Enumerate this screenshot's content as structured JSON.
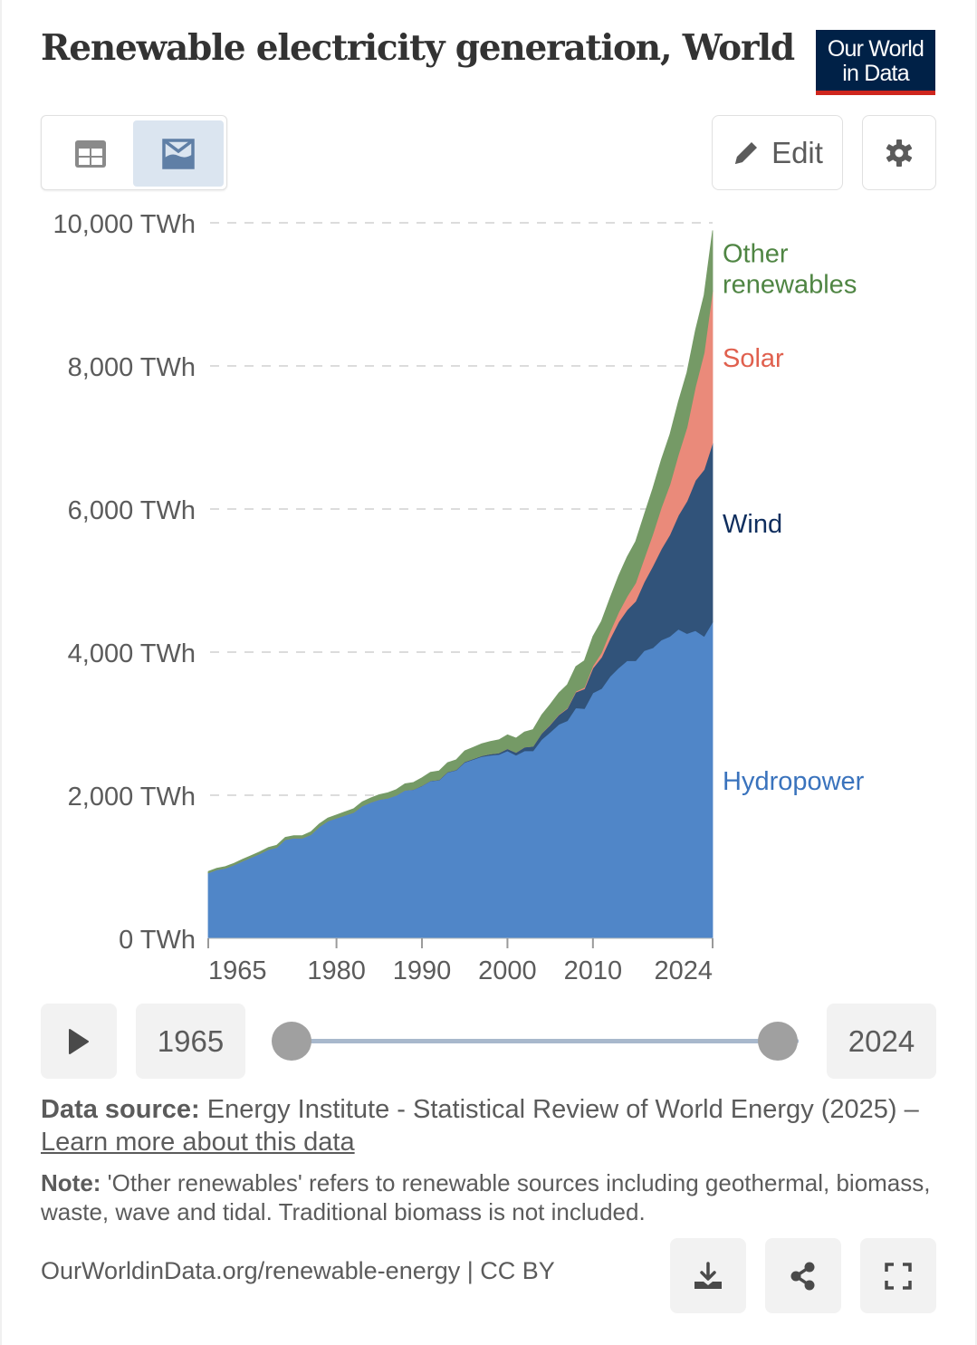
{
  "header": {
    "title": "Renewable electricity generation, World",
    "logo_line1": "Our World",
    "logo_line2": "in Data"
  },
  "toolbar": {
    "table_view_icon": "table-icon",
    "chart_view_icon": "area-chart-icon",
    "chart_view_active": true,
    "edit_label": "Edit",
    "settings_icon": "gear-icon"
  },
  "colors": {
    "hydropower": "#5086c8",
    "wind": "#31537a",
    "solar": "#ea8a7a",
    "other": "#759a66",
    "hydropower_label": "#3a73bd",
    "wind_label": "#0f2e5e",
    "solar_label": "#e0604e",
    "other_label": "#4f8543",
    "logo_bg": "#002147",
    "logo_accent": "#ce261e"
  },
  "chart_data": {
    "type": "area",
    "stacked": true,
    "title": "Renewable electricity generation, World",
    "xlabel": "",
    "ylabel": "",
    "unit": "TWh",
    "x_range": [
      1965,
      2024
    ],
    "ylim": [
      0,
      10000
    ],
    "grid": "horizontal-dashed",
    "legend": "right-inline",
    "x_ticks": [
      "1965",
      "1980",
      "1990",
      "2000",
      "2010",
      "2024"
    ],
    "y_ticks": [
      "0 TWh",
      "2,000 TWh",
      "4,000 TWh",
      "6,000 TWh",
      "8,000 TWh",
      "10,000 TWh"
    ],
    "y_tick_values": [
      0,
      2000,
      4000,
      6000,
      8000,
      10000
    ],
    "x": [
      1965,
      1966,
      1967,
      1968,
      1969,
      1970,
      1971,
      1972,
      1973,
      1974,
      1975,
      1976,
      1977,
      1978,
      1979,
      1980,
      1981,
      1982,
      1983,
      1984,
      1985,
      1986,
      1987,
      1988,
      1989,
      1990,
      1991,
      1992,
      1993,
      1994,
      1995,
      1996,
      1997,
      1998,
      1999,
      2000,
      2001,
      2002,
      2003,
      2004,
      2005,
      2006,
      2007,
      2008,
      2009,
      2010,
      2011,
      2012,
      2013,
      2014,
      2015,
      2016,
      2017,
      2018,
      2019,
      2020,
      2021,
      2022,
      2023,
      2024
    ],
    "series": [
      {
        "name": "Hydropower",
        "values": [
          915,
          960,
          980,
          1025,
          1080,
          1130,
          1180,
          1240,
          1270,
          1380,
          1400,
          1400,
          1450,
          1560,
          1640,
          1680,
          1720,
          1760,
          1850,
          1900,
          1940,
          1960,
          2000,
          2070,
          2080,
          2130,
          2200,
          2210,
          2320,
          2350,
          2460,
          2500,
          2540,
          2560,
          2570,
          2620,
          2560,
          2620,
          2620,
          2780,
          2880,
          2990,
          3040,
          3220,
          3210,
          3430,
          3490,
          3660,
          3780,
          3880,
          3880,
          4020,
          4060,
          4170,
          4220,
          4320,
          4260,
          4300,
          4220,
          4420
        ]
      },
      {
        "name": "Wind",
        "values": [
          0,
          0,
          0,
          0,
          0,
          0,
          0,
          0,
          0,
          0,
          0,
          0,
          0,
          0,
          0,
          0,
          0,
          0,
          0,
          0,
          0,
          0,
          0,
          0,
          1,
          4,
          4,
          5,
          6,
          7,
          8,
          10,
          12,
          16,
          21,
          31,
          38,
          52,
          63,
          85,
          104,
          133,
          171,
          220,
          276,
          346,
          437,
          525,
          640,
          710,
          831,
          960,
          1140,
          1270,
          1420,
          1590,
          1850,
          2100,
          2330,
          2500
        ]
      },
      {
        "name": "Solar",
        "values": [
          0,
          0,
          0,
          0,
          0,
          0,
          0,
          0,
          0,
          0,
          0,
          0,
          0,
          0,
          0,
          0,
          0,
          0,
          0,
          0,
          0,
          0,
          0,
          0,
          0,
          0,
          0,
          0,
          0,
          0,
          0,
          0,
          0,
          0,
          0,
          1,
          1,
          1,
          1,
          2,
          4,
          6,
          8,
          12,
          21,
          33,
          66,
          100,
          136,
          190,
          256,
          330,
          445,
          580,
          700,
          850,
          1030,
          1310,
          1630,
          2130
        ]
      },
      {
        "name": "Other renewables",
        "values": [
          20,
          20,
          22,
          23,
          25,
          26,
          27,
          28,
          30,
          32,
          34,
          36,
          38,
          40,
          42,
          45,
          48,
          52,
          56,
          62,
          68,
          74,
          80,
          90,
          98,
          110,
          118,
          124,
          130,
          138,
          152,
          160,
          168,
          176,
          184,
          192,
          200,
          212,
          234,
          254,
          280,
          300,
          324,
          346,
          374,
          410,
          440,
          470,
          510,
          550,
          580,
          610,
          640,
          670,
          700,
          740,
          770,
          790,
          810,
          840
        ]
      }
    ],
    "series_labels": [
      {
        "name": "Other renewables",
        "lines": [
          "Other",
          "renewables"
        ]
      },
      {
        "name": "Solar",
        "lines": [
          "Solar"
        ]
      },
      {
        "name": "Wind",
        "lines": [
          "Wind"
        ]
      },
      {
        "name": "Hydropower",
        "lines": [
          "Hydropower"
        ]
      }
    ]
  },
  "timeline": {
    "play_icon": "play-icon",
    "start_year": "1965",
    "end_year": "2024",
    "range_start_fraction": 0,
    "range_end_fraction": 1
  },
  "footer": {
    "source_label": "Data source:",
    "source_text": " Energy Institute - Statistical Review of World Energy (2025) – ",
    "source_link": "Learn more about this data",
    "note_label": "Note:",
    "note_text": " 'Other renewables' refers to renewable sources including geothermal, biomass, waste, wave and tidal. Traditional biomass is not included.",
    "url_text": "OurWorldinData.org/renewable-energy | CC BY",
    "download_icon": "download-icon",
    "share_icon": "share-icon",
    "fullscreen_icon": "fullscreen-icon"
  }
}
